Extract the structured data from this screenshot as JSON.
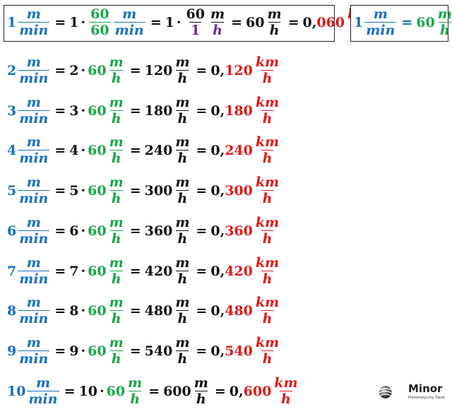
{
  "units": {
    "m": "m",
    "min": "min",
    "h": "h",
    "km": "km"
  },
  "ops": {
    "eq": "=",
    "dot": "·"
  },
  "header_main": {
    "lead": "1",
    "mult1": "1",
    "frac60_num": "60",
    "frac60_den": "60",
    "mult2": "1",
    "frac601_num": "60",
    "frac601_den": "1",
    "sixty": "60",
    "result_prefix": "0,",
    "result_digits": "060"
  },
  "header_side": {
    "lead": "1",
    "value": "60"
  },
  "rows": [
    {
      "n": "2",
      "mh": "120",
      "kmh": "120"
    },
    {
      "n": "3",
      "mh": "180",
      "kmh": "180"
    },
    {
      "n": "4",
      "mh": "240",
      "kmh": "240"
    },
    {
      "n": "5",
      "mh": "300",
      "kmh": "300"
    },
    {
      "n": "6",
      "mh": "360",
      "kmh": "360"
    },
    {
      "n": "7",
      "mh": "420",
      "kmh": "420"
    },
    {
      "n": "8",
      "mh": "480",
      "kmh": "480"
    },
    {
      "n": "9",
      "mh": "540",
      "kmh": "540"
    },
    {
      "n": "10",
      "mh": "600",
      "kmh": "600"
    }
  ],
  "row_sixty": "60",
  "row_prefix": "0,",
  "logo": {
    "name": "Minor",
    "tagline": "Matematyczny Świat"
  },
  "colors": {
    "blue": "#1a6fc0",
    "green": "#1aa64a",
    "red": "#e01818",
    "purple": "#6b2d8f"
  }
}
